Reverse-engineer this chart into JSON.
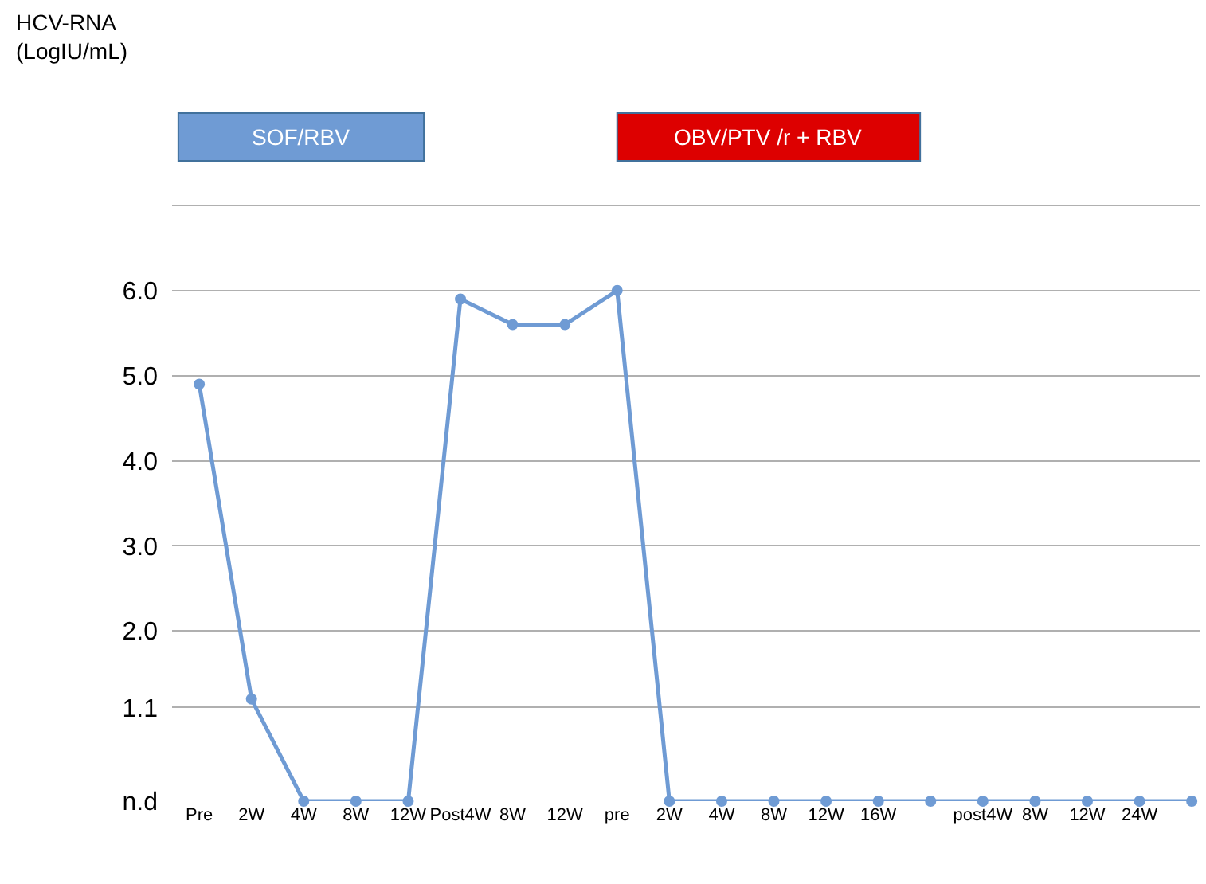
{
  "chart_data": {
    "type": "line",
    "categories": [
      "Pre",
      "2W",
      "4W",
      "8W",
      "12W",
      "Post4W",
      "8W",
      "12W",
      "pre",
      "2W",
      "4W",
      "8W",
      "12W",
      "16W",
      null,
      "post4W",
      "8W",
      "12W",
      "24W",
      null
    ],
    "series": [
      {
        "color": "#6f9bd4",
        "values": [
          4.9,
          1.2,
          0,
          0,
          0,
          5.9,
          5.6,
          5.6,
          6.0,
          0,
          0,
          0,
          0,
          0,
          0,
          0,
          0,
          0,
          0,
          0
        ]
      }
    ],
    "ylim": [
      0,
      7
    ],
    "yticks": [
      {
        "value": 0,
        "label": "n.d"
      },
      1.1,
      {
        "value": 2,
        "label": "2.0"
      },
      {
        "value": 3,
        "label": "3.0"
      },
      {
        "value": 4,
        "label": "4.0"
      },
      {
        "value": 5,
        "label": "5.0"
      },
      {
        "value": 6,
        "label": "6.0"
      },
      {
        "value": 7,
        "label": null
      }
    ],
    "grid": "y",
    "marker": "circle",
    "line_style": "solid",
    "annotations": [
      "HCV-RNA\n(LogIU/mL)",
      "SOF/RBV",
      "OBV/PTV /r + RBV"
    ]
  }
}
